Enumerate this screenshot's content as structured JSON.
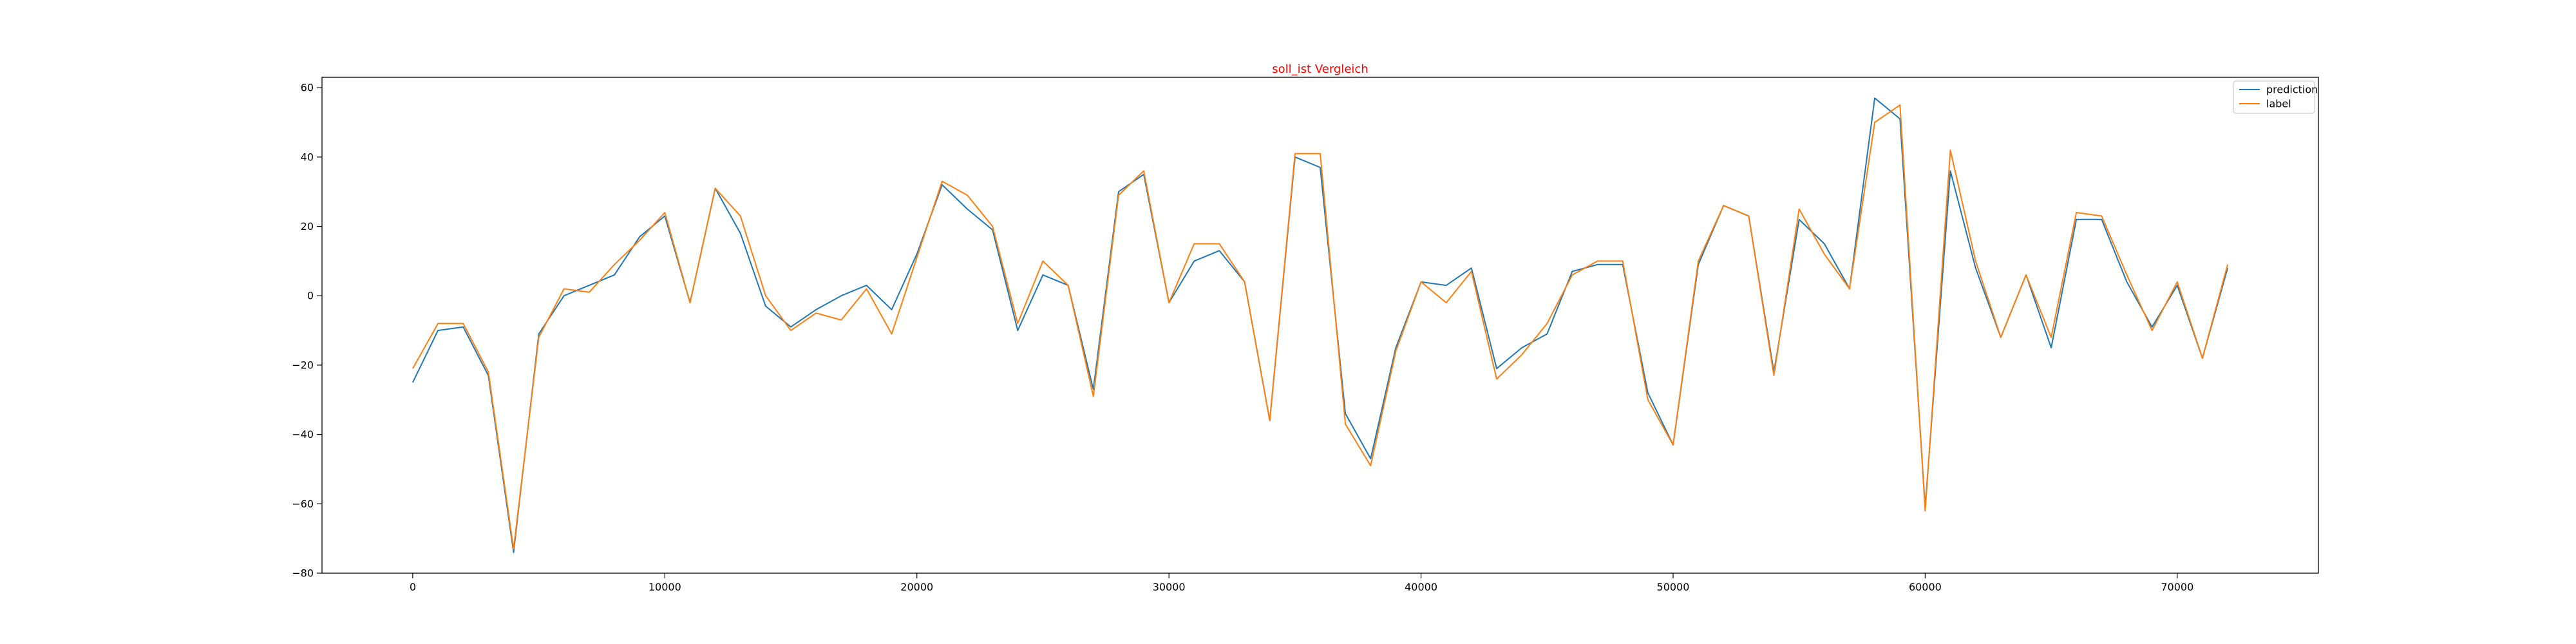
{
  "chart_data": {
    "type": "line",
    "title": "soll_ist Vergleich",
    "title_color": "#ff0000",
    "xlabel": "",
    "ylabel": "",
    "xlim": [
      -3600,
      75600
    ],
    "ylim": [
      -80,
      63
    ],
    "x_ticks": [
      0,
      10000,
      20000,
      30000,
      40000,
      50000,
      60000,
      70000
    ],
    "y_ticks": [
      -80,
      -60,
      -40,
      -20,
      0,
      20,
      40,
      60
    ],
    "grid": false,
    "legend_position": "top-right",
    "x": [
      0,
      1000,
      2000,
      3000,
      4000,
      5000,
      6000,
      7000,
      8000,
      9000,
      10000,
      11000,
      12000,
      13000,
      14000,
      15000,
      16000,
      17000,
      18000,
      19000,
      20000,
      21000,
      22000,
      23000,
      24000,
      25000,
      26000,
      27000,
      28000,
      29000,
      30000,
      31000,
      32000,
      33000,
      34000,
      35000,
      36000,
      37000,
      38000,
      39000,
      40000,
      41000,
      42000,
      43000,
      44000,
      45000,
      46000,
      47000,
      48000,
      49000,
      50000,
      51000,
      52000,
      53000,
      54000,
      55000,
      56000,
      57000,
      58000,
      59000,
      60000,
      61000,
      62000,
      63000,
      64000,
      65000,
      66000,
      67000,
      68000,
      69000,
      70000,
      71000,
      72000
    ],
    "series": [
      {
        "name": "prediction",
        "color": "#1f77b4",
        "values": [
          -25,
          -10,
          -9,
          -23,
          -74,
          -11,
          0,
          3,
          6,
          17,
          23,
          -2,
          31,
          18,
          -3,
          -9,
          -4,
          0,
          3,
          -4,
          12,
          32,
          25,
          19,
          -10,
          6,
          3,
          -27,
          30,
          35,
          -2,
          10,
          13,
          4,
          -36,
          40,
          37,
          -34,
          -47,
          -15,
          4,
          3,
          8,
          -21,
          -15,
          -11,
          7,
          9,
          9,
          -28,
          -43,
          9,
          26,
          23,
          -22,
          22,
          15,
          2,
          57,
          51,
          -61,
          36,
          8,
          -12,
          6,
          -15,
          22,
          22,
          4,
          -9,
          3,
          -18,
          8
        ]
      },
      {
        "name": "label",
        "color": "#ff7f0e",
        "values": [
          -21,
          -8,
          -8,
          -22,
          -73,
          -12,
          2,
          1,
          9,
          16,
          24,
          -2,
          31,
          23,
          0,
          -10,
          -5,
          -7,
          2,
          -11,
          11,
          33,
          29,
          20,
          -8,
          10,
          3,
          -29,
          29,
          36,
          -2,
          15,
          15,
          4,
          -36,
          41,
          41,
          -37,
          -49,
          -16,
          4,
          -2,
          7,
          -24,
          -17,
          -8,
          6,
          10,
          10,
          -30,
          -43,
          10,
          26,
          23,
          -23,
          25,
          12,
          2,
          50,
          55,
          -62,
          42,
          10,
          -12,
          6,
          -12,
          24,
          23,
          6,
          -10,
          4,
          -18,
          9
        ]
      }
    ]
  }
}
